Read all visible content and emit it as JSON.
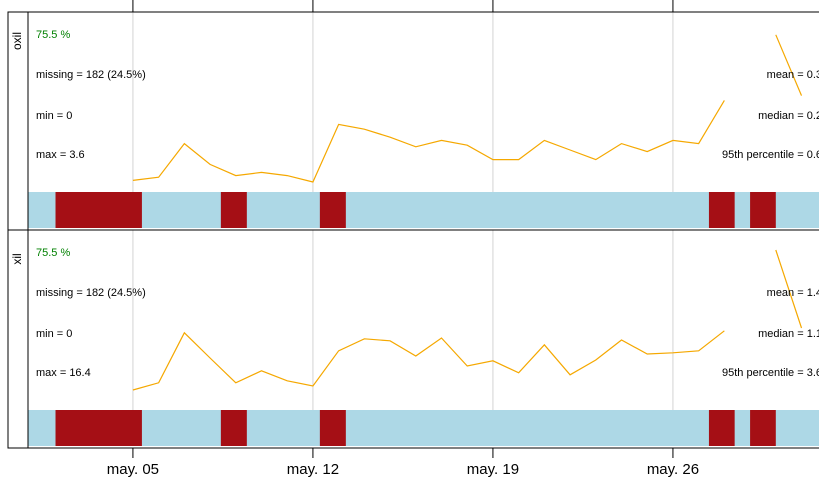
{
  "chart_data": {
    "type": "summary",
    "xlim": [
      0.92,
      31.68
    ],
    "xticks": [
      {
        "value": 5,
        "label": "may. 05"
      },
      {
        "value": 12,
        "label": "may. 12"
      },
      {
        "value": 19,
        "label": "may. 19"
      },
      {
        "value": 26,
        "label": "may. 26"
      }
    ],
    "grid": true,
    "line_color": "#f5a800",
    "present_color": "#add8e6",
    "missing_color": "#a50f15",
    "panels": [
      {
        "name": "oxil",
        "capture": "75.5 %",
        "missing": "missing = 182 (24.5%)",
        "min": "min = 0",
        "max": "max = 3.6",
        "mean": "mean = 0.3",
        "median": "median = 0.2",
        "p95": "95th percentile = 0.6",
        "ylim": [
          0,
          1
        ],
        "x": [
          5,
          6,
          7,
          8,
          9,
          10,
          11,
          12,
          13,
          14,
          15,
          16,
          17,
          18,
          19,
          20,
          21,
          22,
          23,
          24,
          25,
          26,
          27,
          28,
          29,
          30,
          31
        ],
        "values": [
          0.06,
          0.08,
          0.29,
          0.16,
          0.09,
          0.11,
          0.09,
          0.05,
          0.41,
          0.38,
          0.33,
          0.27,
          0.31,
          0.28,
          0.19,
          0.19,
          0.31,
          0.25,
          0.19,
          0.29,
          0.24,
          0.31,
          0.29,
          0.56,
          null,
          0.97,
          0.59
        ],
        "gaps": [
          {
            "start": 1.99,
            "end": 5.35
          },
          {
            "start": 8.42,
            "end": 9.43
          },
          {
            "start": 12.27,
            "end": 13.28
          },
          {
            "start": 27.4,
            "end": 28.4
          },
          {
            "start": 29.0,
            "end": 30.0
          }
        ]
      },
      {
        "name": "xil",
        "capture": "75.5 %",
        "missing": "missing = 182 (24.5%)",
        "min": "min = 0",
        "max": "max = 16.4",
        "mean": "mean = 1.4",
        "median": "median = 1.1",
        "p95": "95th percentile = 3.6",
        "ylim": [
          0,
          4
        ],
        "x": [
          5,
          6,
          7,
          8,
          9,
          10,
          11,
          12,
          13,
          14,
          15,
          16,
          17,
          18,
          19,
          20,
          21,
          22,
          23,
          24,
          25,
          26,
          27,
          28,
          29,
          30,
          31
        ],
        "values": [
          0.45,
          0.63,
          1.88,
          1.25,
          0.63,
          0.93,
          0.68,
          0.55,
          1.43,
          1.73,
          1.68,
          1.3,
          1.75,
          1.05,
          1.18,
          0.88,
          1.58,
          0.83,
          1.2,
          1.7,
          1.35,
          1.38,
          1.43,
          1.93,
          null,
          3.95,
          2.0
        ],
        "gaps": [
          {
            "start": 1.99,
            "end": 5.35
          },
          {
            "start": 8.42,
            "end": 9.43
          },
          {
            "start": 12.27,
            "end": 13.28
          },
          {
            "start": 27.4,
            "end": 28.4
          },
          {
            "start": 29.0,
            "end": 30.0
          }
        ]
      }
    ]
  }
}
